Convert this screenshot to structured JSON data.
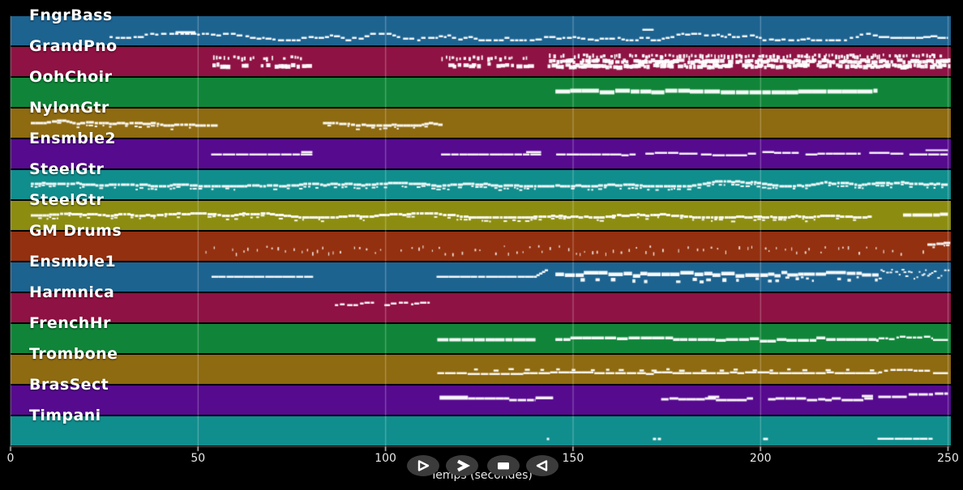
{
  "app": {
    "name": "midi-track-player"
  },
  "colors": {
    "background": "#000000",
    "note": "#ffffff",
    "gridline": "rgba(255,255,255,0.30)",
    "button_bg": "#3b3b3b",
    "button_glyph": "#ffffff",
    "tick": "#d0d0d0"
  },
  "axis": {
    "xlabel": "Temps (secondes)",
    "xlim": [
      0,
      250
    ],
    "tick_values": [
      0,
      50,
      100,
      150,
      200,
      250
    ],
    "tick_labels": [
      "0",
      "50",
      "100",
      "150",
      "200",
      "250"
    ]
  },
  "transport": {
    "buttons": [
      {
        "name": "play-button",
        "icon": "play-icon"
      },
      {
        "name": "fast-forward-button",
        "icon": "fast-forward-icon"
      },
      {
        "name": "stop-button",
        "icon": "stop-icon"
      },
      {
        "name": "rewind-button",
        "icon": "rewind-icon"
      }
    ]
  },
  "tracks": [
    {
      "label": "FngrBass",
      "color": "#1d6390",
      "segments": [
        {
          "style": "wavy",
          "t": [
            26.4,
            231.5
          ],
          "dy": 25,
          "h": 2.5,
          "amp": 4
        },
        {
          "style": "bar",
          "t": [
            44.0,
            49.3
          ],
          "dy": 19,
          "h": 2.5
        },
        {
          "style": "bar",
          "t": [
            168.5,
            171.5
          ],
          "dy": 16,
          "h": 2.5
        },
        {
          "style": "line",
          "t": [
            231.5,
            250
          ],
          "dy": 25,
          "h": 2.5,
          "amp": 1
        }
      ]
    },
    {
      "label": "GrandPno",
      "color": "#8e1243",
      "segments": [
        {
          "style": "chords",
          "t": [
            53.5,
            80.7
          ],
          "rows": [
            {
              "dy": 12,
              "tick": true
            },
            {
              "dy": 21
            }
          ]
        },
        {
          "style": "chords",
          "t": [
            114.8,
            138.9
          ],
          "rows": [
            {
              "dy": 12,
              "tick": true
            },
            {
              "dy": 21
            }
          ]
        },
        {
          "style": "chords",
          "t": [
            143,
            250
          ],
          "dense": true,
          "rows": [
            {
              "dy": 10,
              "tick": true
            },
            {
              "dy": 16
            },
            {
              "dy": 22
            }
          ]
        }
      ]
    },
    {
      "label": "OohChoir",
      "color": "#108539",
      "segments": [
        {
          "style": "line",
          "t": [
            145.3,
            231.2
          ],
          "dy": 15,
          "h": 5,
          "amp": 1.5,
          "step": [
            10,
            22
          ]
        }
      ]
    },
    {
      "label": "NylonGtr",
      "color": "#8e6a10",
      "segments": [
        {
          "style": "dense",
          "t": [
            5.4,
            54.5
          ],
          "dy": 17,
          "h": 3,
          "amp": 3,
          "p2": 0.35
        },
        {
          "style": "dense",
          "t": [
            83.3,
            114.6
          ],
          "dy": 17,
          "h": 3,
          "amp": 3,
          "p2": 0.35
        }
      ]
    },
    {
      "label": "Ensmble2",
      "color": "#560a8e",
      "segments": [
        {
          "style": "line",
          "t": [
            53.5,
            80.5
          ],
          "dy": 18,
          "h": 2.5,
          "amp": 0.5
        },
        {
          "style": "bar",
          "t": [
            77.5,
            80.5
          ],
          "dy": 15,
          "h": 2.5
        },
        {
          "style": "line",
          "t": [
            114.8,
            141.5
          ],
          "dy": 18,
          "h": 2.5,
          "amp": 0.5
        },
        {
          "style": "bar",
          "t": [
            137.5,
            141.5
          ],
          "dy": 15,
          "h": 2.5
        },
        {
          "style": "line",
          "t": [
            145.5,
            166.7
          ],
          "dy": 18,
          "h": 2.5,
          "amp": 1
        },
        {
          "style": "line",
          "t": [
            169.3,
            183.2
          ],
          "dy": 17,
          "h": 2.5,
          "amp": 1
        },
        {
          "style": "line",
          "t": [
            184.1,
            198.8
          ],
          "dy": 18,
          "h": 2.5,
          "amp": 1
        },
        {
          "style": "line",
          "t": [
            200.5,
            210.2
          ],
          "dy": 15,
          "h": 2.5,
          "amp": 1
        },
        {
          "style": "line",
          "t": [
            212,
            226.7
          ],
          "dy": 18,
          "h": 2.5,
          "amp": 1
        },
        {
          "style": "line",
          "t": [
            229,
            238.1
          ],
          "dy": 16,
          "h": 2.5,
          "amp": 1
        },
        {
          "style": "line",
          "t": [
            239.7,
            250
          ],
          "dy": 18,
          "h": 2.5,
          "amp": 1
        },
        {
          "style": "bar",
          "t": [
            244,
            250
          ],
          "dy": 13,
          "h": 2
        }
      ]
    },
    {
      "label": "SteelGtr",
      "color": "#108d8d",
      "segments": [
        {
          "style": "dense",
          "t": [
            5.4,
            250
          ],
          "dy": 16,
          "h": 3,
          "amp": 3,
          "p2": 0.5
        }
      ]
    },
    {
      "label": "SteelGtr",
      "color": "#8c8d10",
      "segments": [
        {
          "style": "dense",
          "t": [
            5.4,
            229
          ],
          "dy": 17,
          "h": 3,
          "amp": 2.5,
          "p2": 0.4
        },
        {
          "style": "line",
          "t": [
            238,
            250
          ],
          "dy": 16,
          "h": 4,
          "amp": 1
        }
      ]
    },
    {
      "label": "GM Drums",
      "color": "#93300f",
      "segments": [
        {
          "style": "ticks",
          "t": [
            52,
            99
          ],
          "dy": 22,
          "amp": 5,
          "alpha": 0.85
        },
        {
          "style": "ticks",
          "t": [
            104,
            244
          ],
          "dy": 22,
          "amp": 5,
          "alpha": 0.85
        },
        {
          "style": "dense",
          "t": [
            244.5,
            250
          ],
          "dy": 15,
          "h": 3,
          "amp": 2,
          "p2": 0.3
        }
      ]
    },
    {
      "label": "Ensmble1",
      "color": "#1d6390",
      "segments": [
        {
          "style": "line",
          "t": [
            53.6,
            80.7
          ],
          "dy": 17,
          "h": 2.5,
          "amp": 0.5
        },
        {
          "style": "line",
          "t": [
            113.6,
            139.5
          ],
          "dy": 17,
          "h": 2.5,
          "amp": 0.5
        },
        {
          "style": "slur",
          "t": [
            139.5,
            143.2
          ],
          "dy": 17,
          "dy2": 9,
          "h": 2.5
        },
        {
          "style": "line",
          "t": [
            145.3,
            202
          ],
          "dy": 13,
          "h": 4.5,
          "amp": 2,
          "step": [
            8,
            18
          ]
        },
        {
          "style": "ticks",
          "t": [
            152,
            202
          ],
          "dy": 21,
          "amp": 2,
          "step": [
            8,
            26
          ],
          "w": [
            3,
            6
          ],
          "hh": [
            3,
            5
          ]
        },
        {
          "style": "line",
          "t": [
            202,
            231.5
          ],
          "dy": 13,
          "h": 4,
          "amp": 2.5,
          "step": [
            6,
            14
          ]
        },
        {
          "style": "ticks",
          "t": [
            202,
            231.5
          ],
          "dy": 20,
          "amp": 3,
          "step": [
            5,
            16
          ],
          "w": [
            2,
            5
          ],
          "hh": [
            2,
            4
          ]
        },
        {
          "style": "scatter",
          "t": [
            231.5,
            250
          ],
          "dy": 14,
          "amp": 6
        }
      ]
    },
    {
      "label": "Harmnica",
      "color": "#8e1243",
      "segments": [
        {
          "style": "wavy",
          "t": [
            86.5,
            97
          ],
          "dy": 14,
          "h": 2.5,
          "amp": 3
        },
        {
          "style": "wavy",
          "t": [
            99.7,
            111.8
          ],
          "dy": 14,
          "h": 2.5,
          "amp": 3
        }
      ]
    },
    {
      "label": "FrenchHr",
      "color": "#108539",
      "segments": [
        {
          "style": "line",
          "t": [
            113.8,
            140
          ],
          "dy": 18,
          "h": 4,
          "amp": 1.5
        },
        {
          "style": "line",
          "t": [
            145.3,
            231.5
          ],
          "dy": 18,
          "h": 3.5,
          "amp": 2
        },
        {
          "style": "wavy",
          "t": [
            231.5,
            246
          ],
          "dy": 17,
          "h": 2.5,
          "amp": 3
        },
        {
          "style": "bar",
          "t": [
            246,
            250
          ],
          "dy": 19,
          "h": 2.5
        }
      ]
    },
    {
      "label": "Trombone",
      "color": "#8e6a10",
      "segments": [
        {
          "style": "line",
          "t": [
            113.8,
            231.5
          ],
          "dy": 22,
          "h": 2.5,
          "amp": 1
        },
        {
          "style": "ticks",
          "t": [
            116,
            231.5
          ],
          "dy": 18,
          "amp": 1,
          "step": [
            14,
            30
          ],
          "w": [
            4,
            7
          ],
          "hh": [
            2.5,
            2.5
          ]
        },
        {
          "style": "wavy",
          "t": [
            231.5,
            246
          ],
          "dy": 21,
          "h": 2.5,
          "amp": 3
        },
        {
          "style": "bar",
          "t": [
            246,
            250
          ],
          "dy": 22,
          "h": 2.5
        }
      ]
    },
    {
      "label": "BrasSect",
      "color": "#560a8e",
      "segments": [
        {
          "style": "bar",
          "t": [
            114.4,
            122
          ],
          "dy": 13,
          "h": 5
        },
        {
          "style": "line",
          "t": [
            122,
            133
          ],
          "dy": 15,
          "h": 3,
          "amp": 0.5
        },
        {
          "style": "line",
          "t": [
            133,
            140
          ],
          "dy": 17,
          "h": 3,
          "amp": 0.5
        },
        {
          "style": "bar",
          "t": [
            140,
            144.7
          ],
          "dy": 14,
          "h": 3.5
        },
        {
          "style": "line",
          "t": [
            173.5,
            198
          ],
          "dy": 16,
          "h": 3,
          "amp": 1
        },
        {
          "style": "bar",
          "t": [
            186,
            189
          ],
          "dy": 13,
          "h": 3
        },
        {
          "style": "line",
          "t": [
            202,
            230
          ],
          "dy": 16,
          "h": 3,
          "amp": 1
        },
        {
          "style": "bar",
          "t": [
            227,
            230
          ],
          "dy": 12,
          "h": 3
        },
        {
          "style": "line",
          "t": [
            231.4,
            239
          ],
          "dy": 13,
          "h": 3,
          "amp": 0.5
        },
        {
          "style": "line",
          "t": [
            239.5,
            246
          ],
          "dy": 10,
          "h": 3,
          "amp": 0.5
        },
        {
          "style": "line",
          "t": [
            246.5,
            250
          ],
          "dy": 9,
          "h": 3,
          "amp": 0.5
        }
      ]
    },
    {
      "label": "Timpani",
      "color": "#108d8d",
      "segments": [
        {
          "style": "dots",
          "dy": 27,
          "h": 3,
          "pts": [
            [
              143,
              3
            ],
            [
              171.3,
              4
            ],
            [
              172.6,
              4
            ],
            [
              200.7,
              6
            ]
          ]
        },
        {
          "style": "line",
          "t": [
            231.2,
            245.9
          ],
          "dy": 27,
          "h": 2.5,
          "amp": 0.5
        }
      ]
    }
  ]
}
